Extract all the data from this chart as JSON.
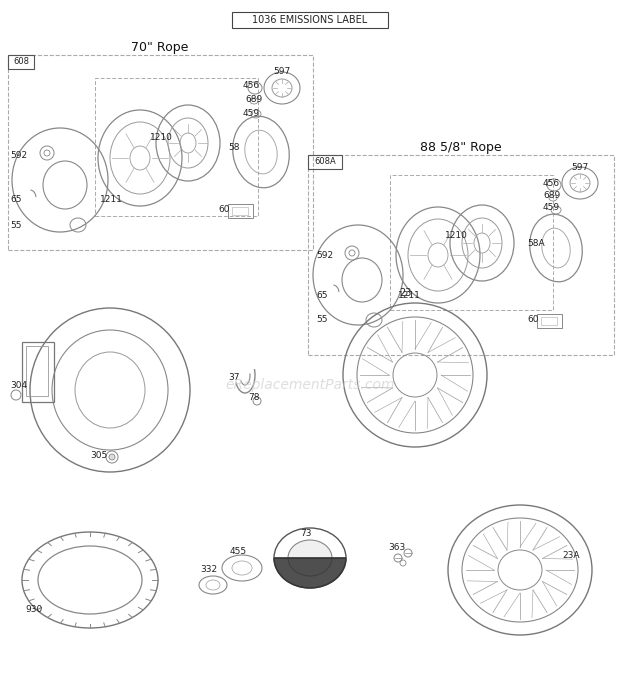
{
  "title": "1036 EMISSIONS LABEL",
  "bg_color": "#ffffff",
  "watermark": "eReplacementParts.com",
  "box1_title": "70\" Rope",
  "box1_label": "608",
  "box2_title": "88 5/8\" Rope",
  "box2_label": "608A",
  "figw": 6.2,
  "figh": 6.93,
  "dpi": 100
}
